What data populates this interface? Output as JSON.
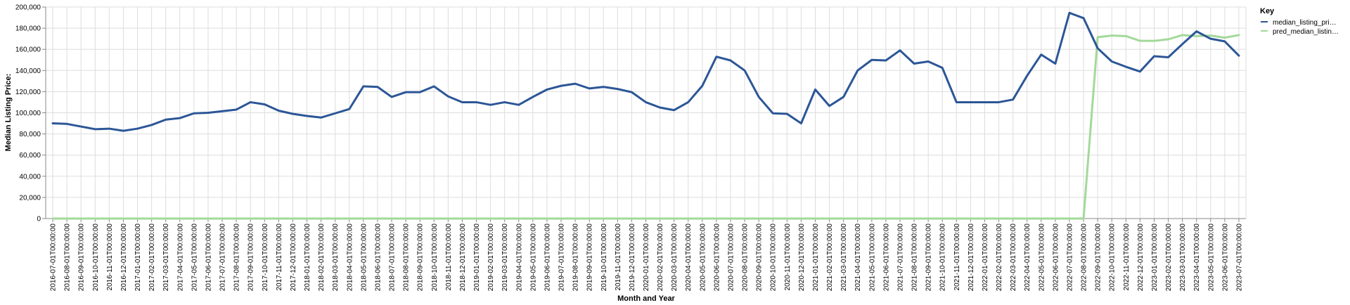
{
  "chart_data": {
    "type": "line",
    "xlabel": "Month and Year",
    "ylabel": "Median Listing Price:",
    "ylim": [
      0,
      200000
    ],
    "y_ticks": [
      "0",
      "20,000",
      "40,000",
      "60,000",
      "80,000",
      "100,000",
      "120,000",
      "140,000",
      "160,000",
      "180,000",
      "200,000"
    ],
    "grid": true,
    "legend": {
      "title": "Key",
      "placement": "right",
      "entries": [
        "median_listing_pri…",
        "pred_median_listin…"
      ]
    },
    "colors": {
      "median_listing_price": "#2c5697",
      "pred_median_listing_price": "#a3d99a"
    },
    "x": [
      "2016-07-01T00:00:00",
      "2016-08-01T00:00:00",
      "2016-09-01T00:00:00",
      "2016-10-01T00:00:00",
      "2016-11-01T00:00:00",
      "2016-12-01T00:00:00",
      "2017-01-01T00:00:00",
      "2017-02-01T00:00:00",
      "2017-03-01T00:00:00",
      "2017-04-01T00:00:00",
      "2017-05-01T00:00:00",
      "2017-06-01T00:00:00",
      "2017-07-01T00:00:00",
      "2017-08-01T00:00:00",
      "2017-09-01T00:00:00",
      "2017-10-01T00:00:00",
      "2017-11-01T00:00:00",
      "2017-12-01T00:00:00",
      "2018-01-01T00:00:00",
      "2018-02-01T00:00:00",
      "2018-03-01T00:00:00",
      "2018-04-01T00:00:00",
      "2018-05-01T00:00:00",
      "2018-06-01T00:00:00",
      "2018-07-01T00:00:00",
      "2018-08-01T00:00:00",
      "2018-09-01T00:00:00",
      "2018-10-01T00:00:00",
      "2018-11-01T00:00:00",
      "2018-12-01T00:00:00",
      "2019-01-01T00:00:00",
      "2019-02-01T00:00:00",
      "2019-03-01T00:00:00",
      "2019-04-01T00:00:00",
      "2019-05-01T00:00:00",
      "2019-06-01T00:00:00",
      "2019-07-01T00:00:00",
      "2019-08-01T00:00:00",
      "2019-09-01T00:00:00",
      "2019-10-01T00:00:00",
      "2019-11-01T00:00:00",
      "2019-12-01T00:00:00",
      "2020-01-01T00:00:00",
      "2020-02-01T00:00:00",
      "2020-03-01T00:00:00",
      "2020-04-01T00:00:00",
      "2020-05-01T00:00:00",
      "2020-06-01T00:00:00",
      "2020-07-01T00:00:00",
      "2020-08-01T00:00:00",
      "2020-09-01T00:00:00",
      "2020-10-01T00:00:00",
      "2020-11-01T00:00:00",
      "2020-12-01T00:00:00",
      "2021-01-01T00:00:00",
      "2021-02-01T00:00:00",
      "2021-03-01T00:00:00",
      "2021-04-01T00:00:00",
      "2021-05-01T00:00:00",
      "2021-06-01T00:00:00",
      "2021-07-01T00:00:00",
      "2021-08-01T00:00:00",
      "2021-09-01T00:00:00",
      "2021-10-01T00:00:00",
      "2021-11-01T00:00:00",
      "2021-12-01T00:00:00",
      "2022-01-01T00:00:00",
      "2022-02-01T00:00:00",
      "2022-03-01T00:00:00",
      "2022-04-01T00:00:00",
      "2022-05-01T00:00:00",
      "2022-06-01T00:00:00",
      "2022-07-01T00:00:00",
      "2022-08-01T00:00:00",
      "2022-09-01T00:00:00",
      "2022-10-01T00:00:00",
      "2022-11-01T00:00:00",
      "2022-12-01T00:00:00",
      "2023-01-01T00:00:00",
      "2023-02-01T00:00:00",
      "2023-03-01T00:00:00",
      "2023-04-01T00:00:00",
      "2023-05-01T00:00:00",
      "2023-06-01T00:00:00",
      "2023-07-01T00:00:00"
    ],
    "series": [
      {
        "name": "median_listing_price",
        "values": [
          90000,
          89500,
          87000,
          84500,
          85000,
          83000,
          85000,
          88500,
          93500,
          95000,
          99500,
          100000,
          101500,
          103000,
          110000,
          108000,
          102000,
          99000,
          97000,
          95500,
          99500,
          103500,
          125000,
          124500,
          115000,
          119500,
          119500,
          125000,
          115500,
          110000,
          110000,
          107500,
          110000,
          107500,
          115000,
          122000,
          125500,
          127500,
          123000,
          124500,
          122500,
          119500,
          110000,
          105000,
          102500,
          110000,
          125500,
          153000,
          149500,
          140000,
          115000,
          99500,
          99000,
          90000,
          122000,
          106500,
          115000,
          140000,
          150000,
          149500,
          159000,
          146500,
          148500,
          142500,
          110000,
          110000,
          110000,
          110000,
          112500,
          135000,
          155000,
          146500,
          194500,
          189500,
          161000,
          148500,
          143500,
          139000,
          153500,
          152500,
          165000,
          177000,
          170000,
          167500,
          154000
        ]
      },
      {
        "name": "pred_median_listing_price",
        "values": [
          0,
          0,
          0,
          0,
          0,
          0,
          0,
          0,
          0,
          0,
          0,
          0,
          0,
          0,
          0,
          0,
          0,
          0,
          0,
          0,
          0,
          0,
          0,
          0,
          0,
          0,
          0,
          0,
          0,
          0,
          0,
          0,
          0,
          0,
          0,
          0,
          0,
          0,
          0,
          0,
          0,
          0,
          0,
          0,
          0,
          0,
          0,
          0,
          0,
          0,
          0,
          0,
          0,
          0,
          0,
          0,
          0,
          0,
          0,
          0,
          0,
          0,
          0,
          0,
          0,
          0,
          0,
          0,
          0,
          0,
          0,
          0,
          0,
          0,
          171500,
          173000,
          172500,
          168000,
          168000,
          169500,
          173500,
          172500,
          173000,
          171000,
          173500
        ]
      }
    ]
  }
}
